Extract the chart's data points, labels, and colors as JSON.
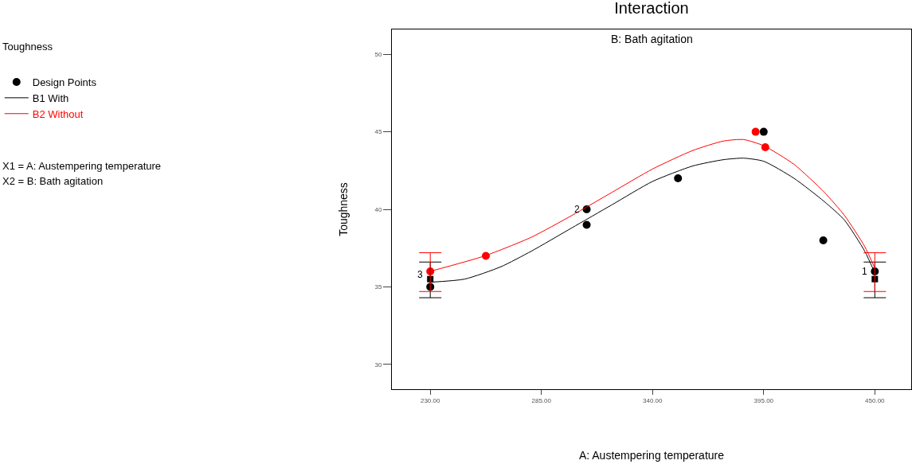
{
  "chart_data": {
    "type": "line",
    "title": "Interaction",
    "subtitle": "B: Bath agitation",
    "xlabel": "A: Austempering temperature",
    "ylabel": "Toughness",
    "annotations": [
      "Toughness",
      "X1 = A: Austempering temperature",
      "X2 = B: Bath agitation",
      {
        "text": "3",
        "x": 230,
        "y": 35.8
      },
      {
        "text": "2",
        "x": 307.4,
        "y": 40
      },
      {
        "text": "1",
        "x": 450,
        "y": 36
      }
    ],
    "xlim": [
      211,
      468
    ],
    "xticks": [
      {
        "value": 230,
        "label": "230.00"
      },
      {
        "value": 285,
        "label": "285.00"
      },
      {
        "value": 340,
        "label": "340.00"
      },
      {
        "value": 395,
        "label": "395.00"
      },
      {
        "value": 450,
        "label": "450.00"
      }
    ],
    "ylim": [
      28.4,
      51.6
    ],
    "yticks": [
      30,
      35,
      40,
      45,
      50
    ],
    "grid": false,
    "legend": "top left",
    "line_style": "solid",
    "marker": "none",
    "series": [
      {
        "name": "Design Points",
        "type": "scatter",
        "marker": "circle",
        "color": "#000000",
        "x": [
          230,
          307.4,
          307.4,
          352.6,
          395,
          424.5,
          450
        ],
        "values": [
          35,
          39,
          40,
          42,
          45,
          38,
          36
        ]
      },
      {
        "type": "scatter",
        "marker": "circle",
        "color": "#ff0000",
        "x": [
          230,
          257.5,
          391,
          395.8
        ],
        "values": [
          36,
          37,
          45,
          44
        ]
      },
      {
        "type": "scatter",
        "marker": "square",
        "color": "#000000",
        "x": [
          230,
          450
        ],
        "values": [
          35.5,
          35.5
        ]
      },
      {
        "name": "B1 With",
        "color": "#000000",
        "x": [
          230,
          247,
          265,
          280,
          300,
          320,
          340,
          360,
          375,
          385,
          395,
          410,
          425,
          435,
          445,
          450
        ],
        "values": [
          35.3,
          35.5,
          36.3,
          37.3,
          38.8,
          40.3,
          41.8,
          42.8,
          43.2,
          43.3,
          43.1,
          42,
          40.5,
          39.3,
          37.3,
          35.9
        ],
        "errors": [
          [
            34.3,
            36.6
          ],
          null,
          null,
          null,
          null,
          null,
          null,
          null,
          null,
          null,
          null,
          null,
          null,
          null,
          null,
          [
            34.3,
            36.6
          ]
        ]
      },
      {
        "name": "B2 Without",
        "color": "#ff0000",
        "x": [
          230,
          257,
          280,
          300,
          320,
          340,
          360,
          375,
          385,
          395,
          410,
          425,
          435,
          445,
          450
        ],
        "values": [
          36,
          37,
          38.2,
          39.6,
          41.1,
          42.6,
          43.8,
          44.4,
          44.5,
          44.1,
          42.9,
          41.1,
          39.6,
          37.6,
          36.2
        ],
        "errors": [
          [
            34.7,
            37.2
          ],
          null,
          null,
          null,
          null,
          null,
          null,
          null,
          null,
          null,
          null,
          null,
          null,
          null,
          [
            34.7,
            37.2
          ]
        ]
      }
    ]
  }
}
